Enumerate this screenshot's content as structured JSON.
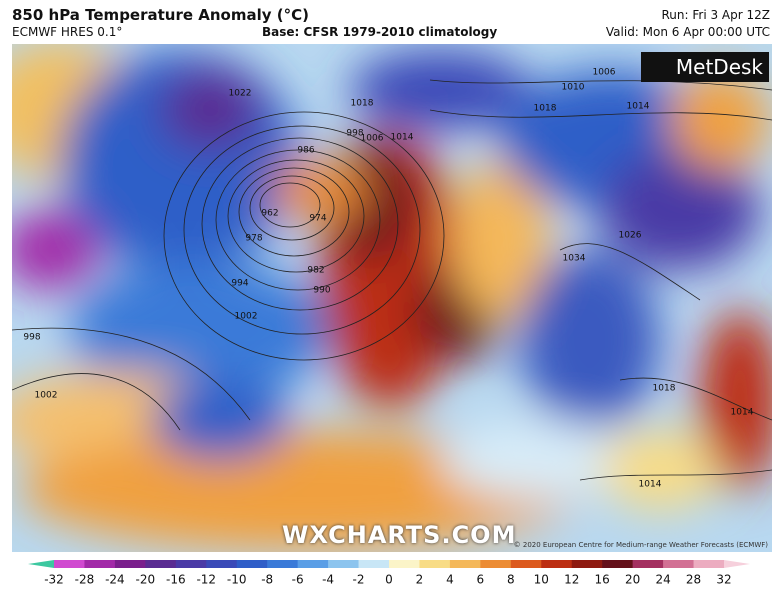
{
  "header": {
    "title": "850 hPa Temperature Anomaly (°C)",
    "model": "ECMWF HRES 0.1°",
    "base": "Base: CFSR 1979-2010 climatology",
    "run": "Run: Fri 3 Apr 12Z",
    "valid": "Valid: Mon 6 Apr 00:00 UTC"
  },
  "logo": "MetDesk",
  "watermark": "WXCHARTS.COM",
  "credit": "© 2020 European Centre for Medium-range Weather Forecasts (ECMWF)",
  "isobar_labels": [
    1018,
    1014,
    1006,
    998,
    986,
    962,
    974,
    978,
    982,
    990,
    994,
    1002,
    998,
    1002,
    1034,
    1018,
    1014,
    1014,
    1006,
    1010,
    1018,
    1014,
    1022,
    1026
  ],
  "colorbar": {
    "ticks": [
      -32,
      -28,
      -24,
      -20,
      -16,
      -12,
      -10,
      -8,
      -6,
      -4,
      -2,
      0,
      2,
      4,
      6,
      8,
      10,
      12,
      16,
      20,
      24,
      28,
      32
    ],
    "colors": [
      "#d04ad0",
      "#a22aa8",
      "#7a1f8c",
      "#5a2c92",
      "#4a3aa6",
      "#3a4ab8",
      "#2f5ec8",
      "#3a7ad8",
      "#5a9ee6",
      "#8cc4ee",
      "#c8e6f6",
      "#fbf4c8",
      "#f8dc86",
      "#f4b85a",
      "#ec8c34",
      "#dc5a1e",
      "#bc2e12",
      "#8e1a10",
      "#64101a",
      "#a43060",
      "#d27094",
      "#ecacc0"
    ]
  }
}
